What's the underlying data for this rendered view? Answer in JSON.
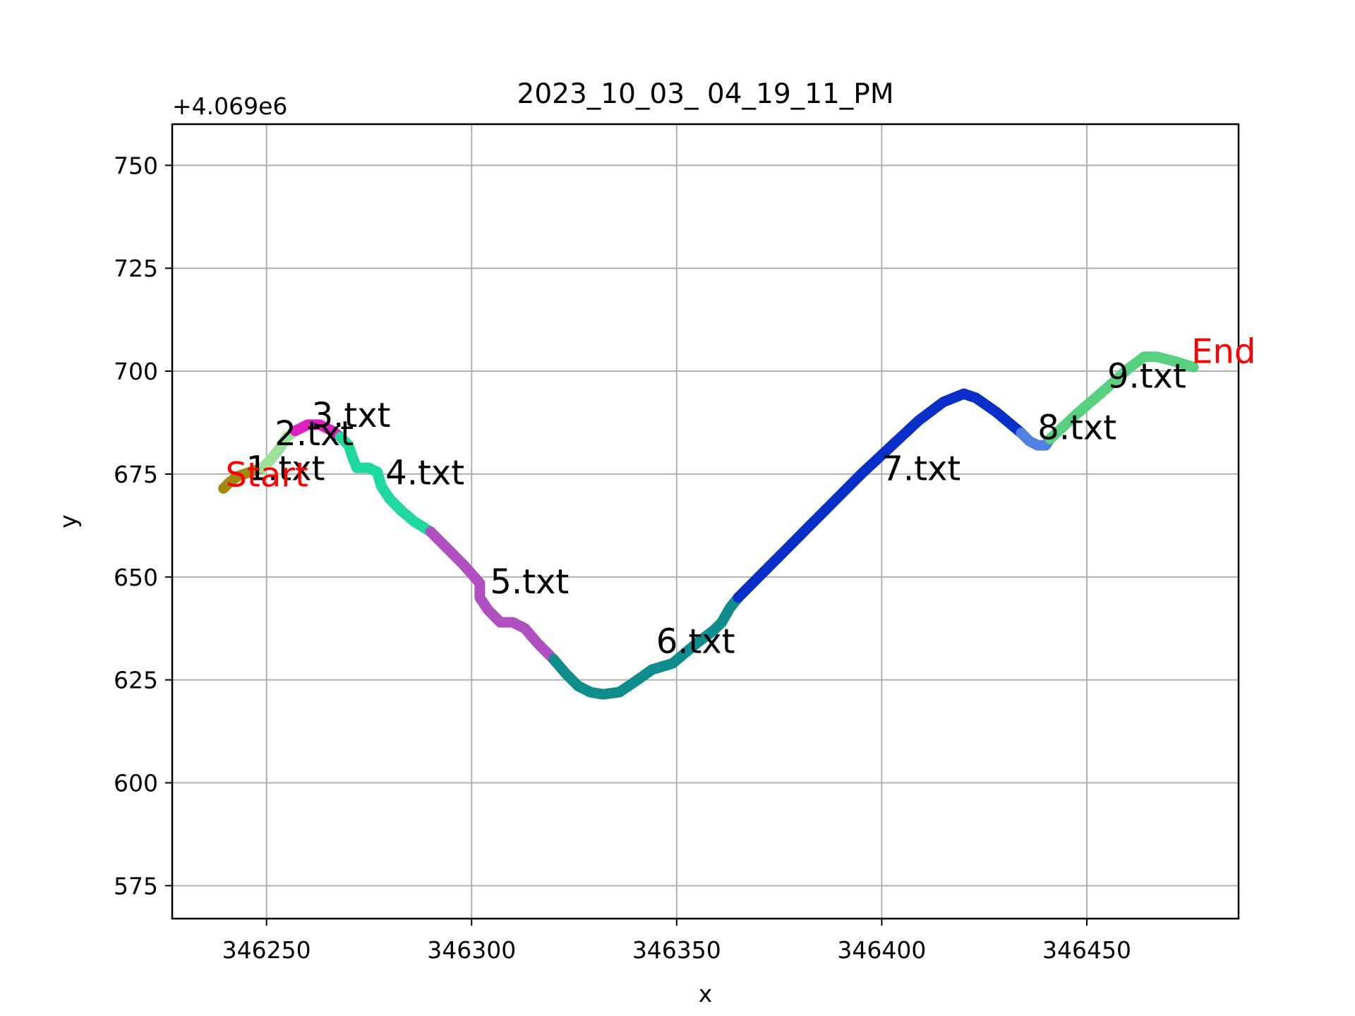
{
  "chart_data": {
    "type": "line",
    "title": "2023_10_03_ 04_19_11_PM",
    "xlabel": "x",
    "ylabel": "y",
    "y_offset_label": "+4.069e6",
    "xlim": [
      346227,
      346487
    ],
    "ylim": [
      567,
      760
    ],
    "x_ticks": [
      346250,
      346300,
      346350,
      346400,
      346450
    ],
    "x_tick_labels": [
      "346250",
      "346300",
      "346350",
      "346400",
      "346450"
    ],
    "y_ticks": [
      575,
      600,
      625,
      650,
      675,
      700,
      725,
      750
    ],
    "y_tick_labels": [
      "575",
      "600",
      "625",
      "650",
      "675",
      "700",
      "725",
      "750"
    ],
    "grid": true,
    "series": [
      {
        "name": "1.txt",
        "color": "#a08a10",
        "label_at": [
          346245,
          673.5
        ],
        "x": [
          346239.5,
          346241,
          346243,
          346246,
          346249
        ],
        "y": [
          671.5,
          673,
          674.5,
          675.5,
          676.5
        ]
      },
      {
        "name": "2.txt",
        "color": "#9be29b",
        "label_at": [
          346252,
          682
        ],
        "x": [
          346249,
          346251,
          346253,
          346255,
          346257
        ],
        "y": [
          676.5,
          678.5,
          681,
          684,
          685.5
        ]
      },
      {
        "name": "3.txt",
        "color": "#e020c0",
        "label_at": [
          346261,
          686.5
        ],
        "x": [
          346257,
          346260,
          346263,
          346266,
          346268
        ],
        "y": [
          685.5,
          687,
          687,
          685.5,
          684
        ]
      },
      {
        "name": "4.txt",
        "color": "#1ed8a0",
        "label_at": [
          346279,
          672.5
        ],
        "x": [
          346268,
          346270,
          346271,
          346272,
          346275,
          346277,
          346278,
          346280,
          346283,
          346286,
          346290
        ],
        "y": [
          684,
          682,
          679,
          676.5,
          676.5,
          675.5,
          672,
          669,
          666,
          663.5,
          661
        ]
      },
      {
        "name": "5.txt",
        "color": "#b050c0",
        "label_at": [
          346304.5,
          646
        ],
        "x": [
          346290,
          346294,
          346298,
          346302,
          346302,
          346304,
          346307,
          346310,
          346313,
          346316,
          346320
        ],
        "y": [
          661,
          657,
          653,
          648.5,
          645,
          642,
          639,
          639,
          637.5,
          634,
          630
        ]
      },
      {
        "name": "6.txt",
        "color": "#0f8c8c",
        "label_at": [
          346345,
          631.5
        ],
        "x": [
          346320,
          346323,
          346326,
          346329,
          346332,
          346336,
          346339,
          346344,
          346349,
          346352,
          346355,
          346359,
          346361,
          346363,
          346365
        ],
        "y": [
          630,
          626.5,
          623.5,
          622,
          621.5,
          622,
          624,
          627.5,
          629,
          631.5,
          634,
          637,
          639,
          642.5,
          645
        ]
      },
      {
        "name": "7.txt",
        "color": "#0a2ec8",
        "label_at": [
          346400,
          673.5
        ],
        "x": [
          346365,
          346372,
          346380,
          346388,
          346395,
          346402,
          346409,
          346415,
          346420,
          346423,
          346428,
          346434
        ],
        "y": [
          645,
          652,
          660,
          668,
          675,
          681.5,
          688,
          692.5,
          694.5,
          693.5,
          690,
          685
        ]
      },
      {
        "name": "8.txt",
        "color": "#5080e0",
        "label_at": [
          346438,
          683.5
        ],
        "x": [
          346434,
          346436,
          346438,
          346440,
          346441
        ],
        "y": [
          685,
          683,
          682,
          682,
          683.5
        ]
      },
      {
        "name": "9.txt",
        "color": "#58d080",
        "label_at": [
          346455,
          696
        ],
        "x": [
          346441,
          346448,
          346455,
          346460,
          346464,
          346467,
          346471,
          346476
        ],
        "y": [
          683.5,
          690,
          696,
          700.5,
          703.5,
          703.5,
          702.5,
          701
        ]
      }
    ],
    "markers": [
      {
        "text": "Start",
        "color": "#ff0000",
        "at": [
          346240,
          672
        ]
      },
      {
        "text": "End",
        "color": "#ff0000",
        "at": [
          346475.5,
          702
        ]
      }
    ]
  }
}
